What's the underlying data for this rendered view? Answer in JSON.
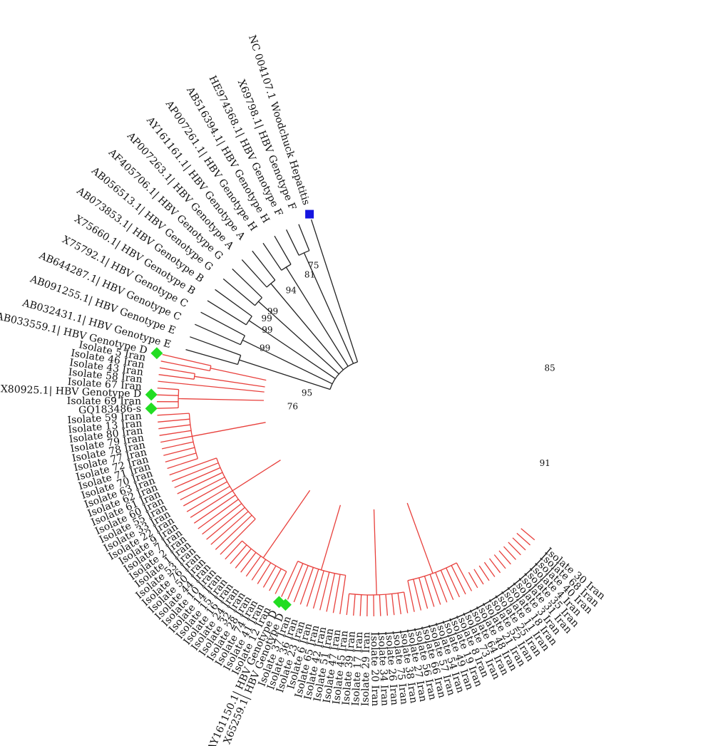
{
  "tree": {
    "colors": {
      "genotype_d_clade": "#e8403c",
      "outgroup_clade": "#222222",
      "marker_reference_d": "#22dd22",
      "marker_outgroup": "#1515e0"
    },
    "outgroup_leaves": [
      {
        "label": "NC 004107.1 Woodchuck Hepatitis",
        "marker": "blue-square"
      },
      {
        "label": "X69798.1| HBV Genotype F"
      },
      {
        "label": "HE974368.1| HBV Genotype F"
      },
      {
        "label": "AB516394.1| HBV Genotype H"
      },
      {
        "label": "AP007261.1| HBV Genotype H"
      },
      {
        "label": "AY161161.1| HBV Genotype A"
      },
      {
        "label": "AP007263.1| HBV Genotype A"
      },
      {
        "label": "AF405706.1| HBV Genotype G"
      },
      {
        "label": "AB056513.1| HBV Genotype G"
      },
      {
        "label": "AB073853.1| HBV Genotype B"
      },
      {
        "label": "X75660.1| HBV Genotype B"
      },
      {
        "label": "X75792.1| HBV Genotype C"
      },
      {
        "label": "AB644287.1| HBV Genotype C"
      },
      {
        "label": "AB091255.1| HBV Genotype E"
      },
      {
        "label": "AB032431.1| HBV Genotype E"
      }
    ],
    "d_leaves": [
      {
        "label": "AB033559.1| HBV Genotype D",
        "marker": "green-diamond"
      },
      {
        "label": "Isolate 5 Iran"
      },
      {
        "label": "Isolate 46 Iran"
      },
      {
        "label": "Isolate 43 Iran"
      },
      {
        "label": "Isolate 58 Iran"
      },
      {
        "label": "Isolate 67 Iran"
      },
      {
        "label": "X80925.1| HBV Genotype D",
        "marker": "green-diamond"
      },
      {
        "label": "Isolate 69 Iran"
      },
      {
        "label": "GQ183486-s",
        "marker": "green-diamond"
      },
      {
        "label": "Isolate 59 Iran"
      },
      {
        "label": "Isolate 13 Iran"
      },
      {
        "label": "Isolate 80 Iran"
      },
      {
        "label": "Isolate 79 Iran"
      },
      {
        "label": "Isolate 78 Iran"
      },
      {
        "label": "Isolate 77 Iran"
      },
      {
        "label": "Isolate 72 Iran"
      },
      {
        "label": "Isolate 71 Iran"
      },
      {
        "label": "Isolate 70 Iran"
      },
      {
        "label": "Isolate 63 Iran"
      },
      {
        "label": "Isolate 62 Iran"
      },
      {
        "label": "Isolate 61 Iran"
      },
      {
        "label": "Isolate 60 Iran"
      },
      {
        "label": "Isolate 55 Iran"
      },
      {
        "label": "Isolate 33 Iran"
      },
      {
        "label": "Isolate 22 Iran"
      },
      {
        "label": "Isolate 9 Iran"
      },
      {
        "label": "Isolate 7 Iran"
      },
      {
        "label": "Isolate 2 Iran"
      },
      {
        "label": "Isolate 1 Iran"
      },
      {
        "label": "Isolate 53 Iran"
      },
      {
        "label": "Isolate 76 Iran"
      },
      {
        "label": "Isolate 50 Iran"
      },
      {
        "label": "Isolate 44 Iran"
      },
      {
        "label": "Isolate 10 Iran"
      },
      {
        "label": "Isolate 14 Iran"
      },
      {
        "label": "Isolate 15 Iran"
      },
      {
        "label": "Isolate 16 Iran"
      },
      {
        "label": "Isolate 24 Iran"
      },
      {
        "label": "Isolate 32 Iran"
      },
      {
        "label": "Isolate 28 Iran"
      },
      {
        "label": "Isolate 74 Iran"
      },
      {
        "label": "Isolate 41 Iran"
      },
      {
        "label": "Isolate 12 Iran"
      },
      {
        "label": "AY161150.1| HBV Genotype D",
        "marker": "green-diamond"
      },
      {
        "label": "X65259.1| HBV Genotype D",
        "marker": "green-diamond"
      },
      {
        "label": "Isolate 37 Iran"
      },
      {
        "label": "Isolate 36 Iran"
      },
      {
        "label": "Isolate 23 Iran"
      },
      {
        "label": "Isolate 6 Iran"
      },
      {
        "label": "Isolate 65 Iran"
      },
      {
        "label": "Isolate 42 Iran"
      },
      {
        "label": "Isolate 51 Iran"
      },
      {
        "label": "Isolate 47 Iran"
      },
      {
        "label": "Isolate 45 Iran"
      },
      {
        "label": "Isolate 39 Iran"
      },
      {
        "label": "Isolate 17 Iran"
      },
      {
        "label": "Isolate 29 Iran"
      },
      {
        "label": "Isolate 20 Iran"
      },
      {
        "label": "Isolate 34 Iran"
      },
      {
        "label": "Isolate 26 Iran"
      },
      {
        "label": "Isolate 75 Iran"
      },
      {
        "label": "Isolate 38 Iran"
      },
      {
        "label": "Isolate 27 Iran"
      },
      {
        "label": "Isolate 56 Iran"
      },
      {
        "label": "Isolate 66 Iran"
      },
      {
        "label": "Isolate 57 Iran"
      },
      {
        "label": "Isolate 54 Iran"
      },
      {
        "label": "Isolate 49 Iran"
      },
      {
        "label": "Isolate 19 Iran"
      },
      {
        "label": "Isolate 8 Iran"
      },
      {
        "label": "Isolate 73 Iran"
      },
      {
        "label": "Isolate 64 Iran"
      },
      {
        "label": "Isolate 48 Iran"
      },
      {
        "label": "Isolate 21 Iran"
      },
      {
        "label": "Isolate 52 Iran"
      },
      {
        "label": "Isolate 25 Iran"
      },
      {
        "label": "Isolate 11 Iran"
      },
      {
        "label": "Isolate 18 Iran"
      },
      {
        "label": "Isolate 3 Iran"
      },
      {
        "label": "Isolate 31 Iran"
      },
      {
        "label": "Isolate 35 Iran"
      },
      {
        "label": "Isolate 4 Iran"
      },
      {
        "label": "Isolate 40 Iran"
      },
      {
        "label": "Isolate 68 Iran"
      },
      {
        "label": "Isolate 30 Iran"
      }
    ],
    "bootstrap_values": [
      "75",
      "81",
      "94",
      "99",
      "99",
      "99",
      "99",
      "95",
      "76",
      "85",
      "91"
    ]
  }
}
